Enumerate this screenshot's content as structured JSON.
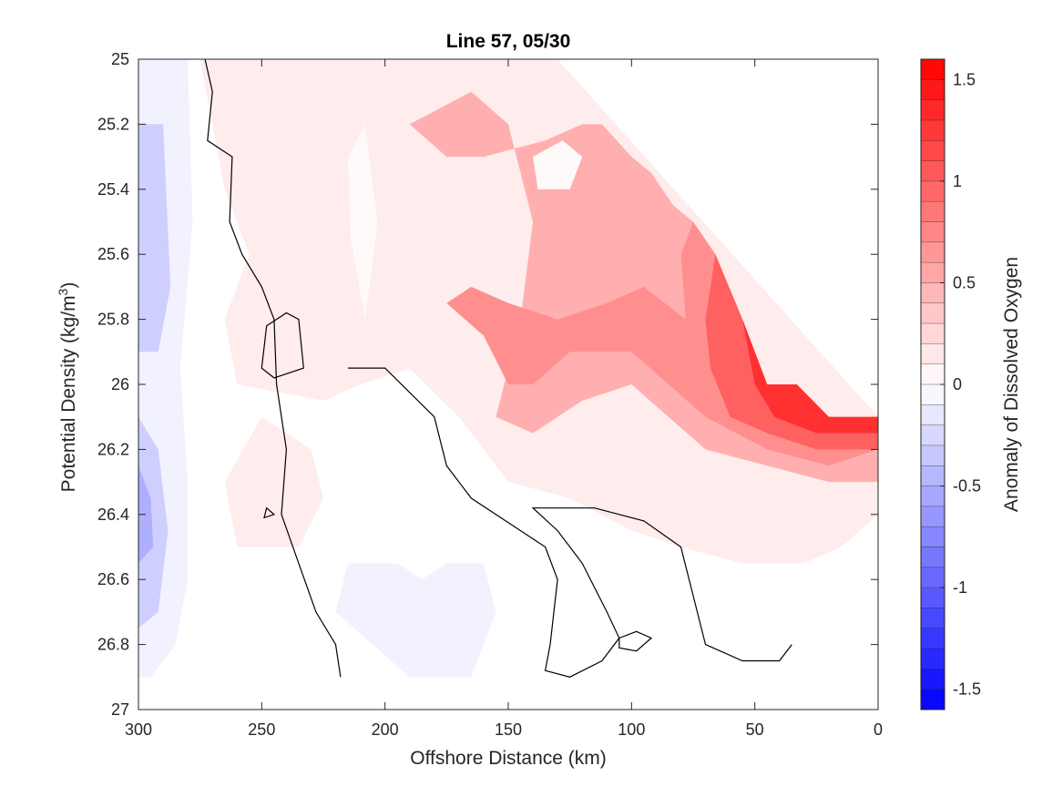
{
  "chart_data": {
    "type": "heatmap",
    "subtype": "filled-contour",
    "title": "Line 57, 05/30",
    "xlabel": "Offshore Distance (km)",
    "ylabel_base": "Potential Density (kg/m",
    "ylabel_sup": "3",
    "ylabel_end": ")",
    "xlim": [
      0,
      300
    ],
    "x_reversed": true,
    "ylim": [
      25,
      27
    ],
    "y_reversed": true,
    "xticks": [
      300,
      250,
      200,
      150,
      100,
      50,
      0
    ],
    "xtick_labels": [
      "300",
      "250",
      "200",
      "150",
      "100",
      "50",
      "0"
    ],
    "yticks": [
      25,
      25.2,
      25.4,
      25.6,
      25.8,
      26,
      26.2,
      26.4,
      26.6,
      26.8,
      27
    ],
    "ytick_labels": [
      "25",
      "25.2",
      "25.4",
      "25.6",
      "25.8",
      "26",
      "26.2",
      "26.4",
      "26.6",
      "26.8",
      "27"
    ],
    "grid": false,
    "zero_contour_color": "#000000",
    "colorbar": {
      "label": "Anomaly of Dissolved Oxygen",
      "range": [
        -1.6,
        1.6
      ],
      "level_step": 0.1,
      "ticks": [
        1.5,
        1,
        0.5,
        0,
        -0.5,
        -1,
        -1.5
      ],
      "tick_labels": [
        "1.5",
        "1",
        "0.5",
        "0",
        "-0.5",
        "-1",
        "-1.5"
      ],
      "colormap": "blue-white-red",
      "min_color": "#0000ff",
      "max_color": "#ff0000",
      "mid_color": "#ffffff"
    },
    "data_region_boundary": [
      [
        120,
        25.1
      ],
      [
        112,
        25.2
      ],
      [
        100,
        25.3
      ],
      [
        92,
        25.35
      ],
      [
        83,
        25.45
      ],
      [
        75,
        25.5
      ],
      [
        66,
        25.6
      ],
      [
        55,
        25.8
      ],
      [
        45,
        26.0
      ],
      [
        33,
        26.0
      ],
      [
        20,
        26.1
      ],
      [
        0,
        26.1
      ]
    ],
    "fields": [
      {
        "value": 0.3,
        "polygon": [
          [
            260,
            25
          ],
          [
            220,
            25
          ],
          [
            210,
            25.3
          ],
          [
            220,
            25.55
          ],
          [
            235,
            25.7
          ],
          [
            225,
            25.9
          ],
          [
            210,
            26.0
          ],
          [
            190,
            25.95
          ],
          [
            170,
            26.1
          ],
          [
            150,
            26.25
          ],
          [
            125,
            26.25
          ],
          [
            100,
            26.2
          ],
          [
            80,
            26.25
          ],
          [
            55,
            26.3
          ],
          [
            40,
            26.4
          ],
          [
            20,
            26.4
          ],
          [
            0,
            26.4
          ],
          [
            0,
            26.1
          ],
          [
            20,
            26.1
          ],
          [
            33,
            26.0
          ],
          [
            45,
            26.0
          ],
          [
            55,
            25.8
          ],
          [
            66,
            25.6
          ],
          [
            75,
            25.5
          ],
          [
            83,
            25.45
          ],
          [
            92,
            25.35
          ],
          [
            100,
            25.3
          ],
          [
            112,
            25.2
          ],
          [
            120,
            25.1
          ],
          [
            130,
            25
          ]
        ]
      },
      {
        "value": 0.12,
        "polygon": [
          [
            235,
            25
          ],
          [
            275,
            25
          ],
          [
            265,
            25.4
          ],
          [
            255,
            25.6
          ],
          [
            265,
            25.8
          ],
          [
            260,
            26.0
          ],
          [
            225,
            26.05
          ],
          [
            210,
            26.0
          ],
          [
            190,
            25.95
          ],
          [
            170,
            26.1
          ],
          [
            150,
            26.3
          ],
          [
            125,
            26.35
          ],
          [
            100,
            26.45
          ],
          [
            80,
            26.5
          ],
          [
            55,
            26.55
          ],
          [
            30,
            26.55
          ],
          [
            15,
            26.5
          ],
          [
            0,
            26.4
          ],
          [
            0,
            26.1
          ],
          [
            130,
            25
          ]
        ]
      },
      {
        "value": 0.12,
        "polygon": [
          [
            250,
            26.1
          ],
          [
            230,
            26.2
          ],
          [
            225,
            26.35
          ],
          [
            235,
            26.5
          ],
          [
            260,
            26.5
          ],
          [
            265,
            26.3
          ]
        ]
      },
      {
        "value": 0.5,
        "polygon": [
          [
            190,
            25.2
          ],
          [
            165,
            25.1
          ],
          [
            150,
            25.2
          ],
          [
            140,
            25.5
          ],
          [
            145,
            25.8
          ],
          [
            155,
            26.1
          ],
          [
            140,
            26.15
          ],
          [
            120,
            26.05
          ],
          [
            100,
            26.0
          ],
          [
            85,
            26.1
          ],
          [
            70,
            26.2
          ],
          [
            45,
            26.25
          ],
          [
            20,
            26.3
          ],
          [
            0,
            26.3
          ],
          [
            0,
            26.1
          ],
          [
            20,
            26.1
          ],
          [
            33,
            26.0
          ],
          [
            45,
            26.0
          ],
          [
            55,
            25.8
          ],
          [
            66,
            25.6
          ],
          [
            75,
            25.5
          ],
          [
            83,
            25.45
          ],
          [
            92,
            25.35
          ],
          [
            100,
            25.3
          ],
          [
            112,
            25.2
          ],
          [
            120,
            25.2
          ],
          [
            135,
            25.25
          ],
          [
            160,
            25.3
          ],
          [
            175,
            25.3
          ]
        ]
      },
      {
        "value": 0.7,
        "polygon": [
          [
            175,
            25.75
          ],
          [
            160,
            25.85
          ],
          [
            150,
            26.0
          ],
          [
            140,
            26.0
          ],
          [
            125,
            25.9
          ],
          [
            100,
            25.9
          ],
          [
            85,
            26.0
          ],
          [
            70,
            26.1
          ],
          [
            45,
            26.2
          ],
          [
            20,
            26.25
          ],
          [
            0,
            26.2
          ],
          [
            0,
            26.1
          ],
          [
            20,
            26.1
          ],
          [
            33,
            26.0
          ],
          [
            45,
            26.0
          ],
          [
            55,
            25.8
          ],
          [
            66,
            25.6
          ],
          [
            75,
            25.5
          ],
          [
            80,
            25.6
          ],
          [
            78,
            25.8
          ],
          [
            95,
            25.7
          ],
          [
            110,
            25.75
          ],
          [
            130,
            25.8
          ],
          [
            150,
            25.75
          ],
          [
            165,
            25.7
          ]
        ]
      },
      {
        "value": 1.0,
        "polygon": [
          [
            66,
            25.6
          ],
          [
            55,
            25.8
          ],
          [
            45,
            26.0
          ],
          [
            33,
            26.0
          ],
          [
            20,
            26.1
          ],
          [
            0,
            26.1
          ],
          [
            0,
            26.2
          ],
          [
            25,
            26.2
          ],
          [
            45,
            26.15
          ],
          [
            60,
            26.1
          ],
          [
            68,
            25.95
          ],
          [
            70,
            25.8
          ]
        ]
      },
      {
        "value": 1.3,
        "polygon": [
          [
            55,
            25.8
          ],
          [
            45,
            26.0
          ],
          [
            33,
            26.0
          ],
          [
            20,
            26.1
          ],
          [
            0,
            26.1
          ],
          [
            0,
            26.15
          ],
          [
            25,
            26.15
          ],
          [
            42,
            26.1
          ],
          [
            50,
            26.0
          ]
        ]
      },
      {
        "value": 0.03,
        "polygon": [
          [
            215,
            25.3
          ],
          [
            208,
            25.2
          ],
          [
            203,
            25.5
          ],
          [
            208,
            25.8
          ],
          [
            214,
            25.55
          ]
        ]
      },
      {
        "value": 0.03,
        "polygon": [
          [
            140,
            25.3
          ],
          [
            128,
            25.25
          ],
          [
            120,
            25.3
          ],
          [
            125,
            25.4
          ],
          [
            138,
            25.4
          ]
        ]
      },
      {
        "value": -0.08,
        "polygon": [
          [
            215,
            26.55
          ],
          [
            195,
            26.55
          ],
          [
            185,
            26.6
          ],
          [
            175,
            26.55
          ],
          [
            160,
            26.55
          ],
          [
            155,
            26.7
          ],
          [
            165,
            26.9
          ],
          [
            190,
            26.9
          ],
          [
            205,
            26.8
          ],
          [
            220,
            26.7
          ]
        ]
      },
      {
        "value": -0.08,
        "polygon": [
          [
            300,
            25
          ],
          [
            280,
            25
          ],
          [
            278,
            25.5
          ],
          [
            283,
            25.95
          ],
          [
            280,
            26.3
          ],
          [
            280,
            26.6
          ],
          [
            285,
            26.8
          ],
          [
            295,
            26.9
          ],
          [
            300,
            26.9
          ]
        ]
      },
      {
        "value": -0.3,
        "polygon": [
          [
            300,
            25.2
          ],
          [
            290,
            25.2
          ],
          [
            287,
            25.7
          ],
          [
            292,
            25.9
          ],
          [
            300,
            25.9
          ]
        ]
      },
      {
        "value": -0.3,
        "polygon": [
          [
            300,
            26.1
          ],
          [
            292,
            26.2
          ],
          [
            288,
            26.45
          ],
          [
            292,
            26.7
          ],
          [
            300,
            26.75
          ]
        ]
      },
      {
        "value": -0.5,
        "polygon": [
          [
            300,
            26.25
          ],
          [
            295,
            26.35
          ],
          [
            294,
            26.5
          ],
          [
            300,
            26.55
          ]
        ]
      }
    ],
    "zero_contours": [
      {
        "closed": false,
        "points": [
          [
            273,
            25
          ],
          [
            270,
            25.1
          ],
          [
            272,
            25.25
          ],
          [
            262,
            25.3
          ],
          [
            263,
            25.5
          ],
          [
            258,
            25.6
          ],
          [
            250,
            25.7
          ],
          [
            245,
            25.8
          ],
          [
            244,
            26.0
          ],
          [
            240,
            26.2
          ],
          [
            242,
            26.4
          ],
          [
            235,
            26.55
          ],
          [
            228,
            26.7
          ],
          [
            220,
            26.8
          ],
          [
            218,
            26.9
          ]
        ]
      },
      {
        "closed": true,
        "points": [
          [
            248,
            25.82
          ],
          [
            240,
            25.78
          ],
          [
            235,
            25.8
          ],
          [
            233,
            25.95
          ],
          [
            245,
            25.98
          ],
          [
            250,
            25.95
          ]
        ]
      },
      {
        "closed": false,
        "points": [
          [
            215,
            25.95
          ],
          [
            200,
            25.95
          ],
          [
            180,
            26.1
          ],
          [
            175,
            26.25
          ],
          [
            165,
            26.35
          ],
          [
            145,
            26.45
          ],
          [
            135,
            26.5
          ],
          [
            130,
            26.6
          ],
          [
            133,
            26.8
          ],
          [
            135,
            26.88
          ],
          [
            125,
            26.9
          ],
          [
            112,
            26.85
          ],
          [
            105,
            26.78
          ],
          [
            110,
            26.7
          ],
          [
            120,
            26.55
          ],
          [
            130,
            26.45
          ],
          [
            140,
            26.38
          ],
          [
            115,
            26.38
          ],
          [
            95,
            26.42
          ],
          [
            80,
            26.5
          ],
          [
            75,
            26.65
          ],
          [
            70,
            26.8
          ],
          [
            55,
            26.85
          ],
          [
            40,
            26.85
          ],
          [
            35,
            26.8
          ]
        ]
      },
      {
        "closed": true,
        "points": [
          [
            105,
            26.78
          ],
          [
            98,
            26.76
          ],
          [
            92,
            26.78
          ],
          [
            98,
            26.82
          ],
          [
            105,
            26.81
          ]
        ]
      },
      {
        "closed": true,
        "points": [
          [
            248,
            26.38
          ],
          [
            245,
            26.4
          ],
          [
            249,
            26.41
          ]
        ]
      }
    ]
  }
}
